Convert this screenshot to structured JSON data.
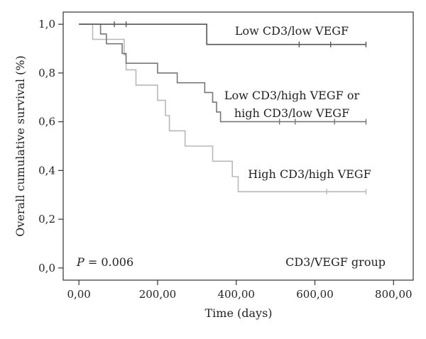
{
  "chart_data": {
    "type": "line",
    "subtype": "kaplan-meier step survival curves",
    "xlabel": "Time (days)",
    "ylabel": "Overall cumulative survival (%)",
    "xlim": [
      -40,
      850
    ],
    "ylim": [
      -0.05,
      1.05
    ],
    "xticks": [
      0,
      200,
      400,
      600,
      800
    ],
    "xtick_labels": [
      "0,00",
      "200,00",
      "400,00",
      "600,00",
      "800,00"
    ],
    "yticks": [
      0.0,
      0.2,
      0.4,
      0.6,
      0.8,
      1.0
    ],
    "ytick_labels": [
      "0,0",
      "0,2",
      "0,4",
      "0,6",
      "0,8",
      "1,0"
    ],
    "grid": false,
    "p_label_italic": "P",
    "p_label_rest": " = 0.006",
    "legend_title": "CD3/VEGF group",
    "series": [
      {
        "name": "Low CD3/low VEGF",
        "label_lines": [
          "Low CD3/low VEGF"
        ],
        "color": "#555555",
        "points": [
          [
            0,
            1.0
          ],
          [
            325,
            1.0
          ],
          [
            325,
            0.917
          ],
          [
            730,
            0.917
          ]
        ],
        "censored": [
          [
            90,
            1.0
          ],
          [
            120,
            1.0
          ],
          [
            560,
            0.917
          ],
          [
            640,
            0.917
          ],
          [
            730,
            0.917
          ]
        ]
      },
      {
        "name": "Low CD3/high VEGF or high CD3/low VEGF",
        "label_lines": [
          "Low CD3/high VEGF or",
          "high CD3/low VEGF"
        ],
        "color": "#777777",
        "points": [
          [
            0,
            1.0
          ],
          [
            55,
            1.0
          ],
          [
            55,
            0.96
          ],
          [
            70,
            0.96
          ],
          [
            70,
            0.92
          ],
          [
            110,
            0.92
          ],
          [
            110,
            0.88
          ],
          [
            120,
            0.88
          ],
          [
            120,
            0.84
          ],
          [
            200,
            0.84
          ],
          [
            200,
            0.8
          ],
          [
            250,
            0.8
          ],
          [
            250,
            0.76
          ],
          [
            320,
            0.76
          ],
          [
            320,
            0.72
          ],
          [
            340,
            0.72
          ],
          [
            340,
            0.68
          ],
          [
            350,
            0.68
          ],
          [
            350,
            0.64
          ],
          [
            360,
            0.64
          ],
          [
            360,
            0.6
          ],
          [
            730,
            0.6
          ]
        ],
        "censored": [
          [
            510,
            0.6
          ],
          [
            550,
            0.6
          ],
          [
            650,
            0.6
          ],
          [
            730,
            0.6
          ]
        ]
      },
      {
        "name": "High CD3/high VEGF",
        "label_lines": [
          "High CD3/high VEGF"
        ],
        "color": "#b8b8b8",
        "points": [
          [
            0,
            1.0
          ],
          [
            35,
            1.0
          ],
          [
            35,
            0.938
          ],
          [
            115,
            0.938
          ],
          [
            115,
            0.875
          ],
          [
            120,
            0.875
          ],
          [
            120,
            0.813
          ],
          [
            145,
            0.813
          ],
          [
            145,
            0.75
          ],
          [
            200,
            0.75
          ],
          [
            200,
            0.688
          ],
          [
            220,
            0.688
          ],
          [
            220,
            0.625
          ],
          [
            230,
            0.625
          ],
          [
            230,
            0.563
          ],
          [
            270,
            0.563
          ],
          [
            270,
            0.5
          ],
          [
            340,
            0.5
          ],
          [
            340,
            0.438
          ],
          [
            390,
            0.438
          ],
          [
            390,
            0.375
          ],
          [
            405,
            0.375
          ],
          [
            405,
            0.313
          ],
          [
            730,
            0.313
          ]
        ],
        "censored": [
          [
            630,
            0.313
          ],
          [
            730,
            0.313
          ]
        ]
      }
    ]
  }
}
